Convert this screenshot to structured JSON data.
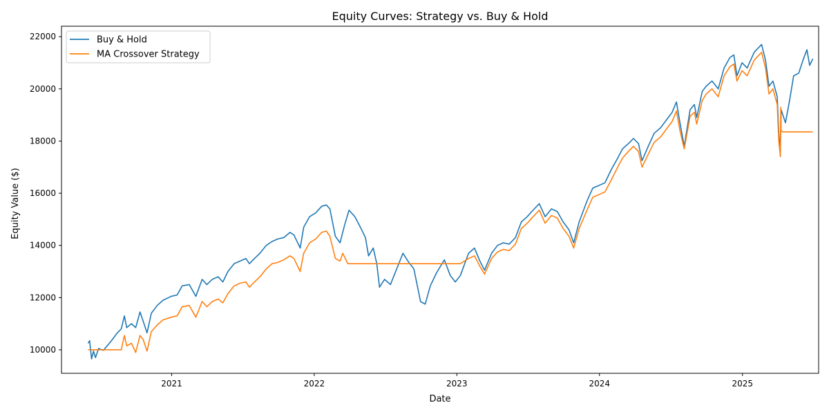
{
  "chart_data": {
    "type": "line",
    "title": "Equity Curves: Strategy vs. Buy & Hold",
    "xlabel": "Date",
    "ylabel": "Equity Value ($)",
    "xlim": [
      "2020-03-25",
      "2025-07-15"
    ],
    "ylim": [
      9100,
      22400
    ],
    "x_ticks": [
      "2021",
      "2022",
      "2023",
      "2024",
      "2025"
    ],
    "x_tick_dates": [
      "2021-01-01",
      "2022-01-01",
      "2023-01-01",
      "2024-01-01",
      "2025-01-01"
    ],
    "y_ticks": [
      10000,
      12000,
      14000,
      16000,
      18000,
      20000,
      22000
    ],
    "legend_position": "top-left",
    "grid": false,
    "series": [
      {
        "name": "Buy & Hold",
        "color": "#1f77b4",
        "points": [
          [
            "2020-06-01",
            10250
          ],
          [
            "2020-06-05",
            10350
          ],
          [
            "2020-06-10",
            9650
          ],
          [
            "2020-06-15",
            9950
          ],
          [
            "2020-06-20",
            9700
          ],
          [
            "2020-06-28",
            10050
          ],
          [
            "2020-07-10",
            9980
          ],
          [
            "2020-07-20",
            10150
          ],
          [
            "2020-07-31",
            10350
          ],
          [
            "2020-08-15",
            10650
          ],
          [
            "2020-08-25",
            10800
          ],
          [
            "2020-09-02",
            11300
          ],
          [
            "2020-09-08",
            10850
          ],
          [
            "2020-09-20",
            11000
          ],
          [
            "2020-10-01",
            10850
          ],
          [
            "2020-10-12",
            11450
          ],
          [
            "2020-10-20",
            11100
          ],
          [
            "2020-10-30",
            10650
          ],
          [
            "2020-11-10",
            11400
          ],
          [
            "2020-11-25",
            11700
          ],
          [
            "2020-12-10",
            11900
          ],
          [
            "2020-12-31",
            12050
          ],
          [
            "2021-01-15",
            12100
          ],
          [
            "2021-01-28",
            12450
          ],
          [
            "2021-02-15",
            12500
          ],
          [
            "2021-03-04",
            12050
          ],
          [
            "2021-03-20",
            12700
          ],
          [
            "2021-04-01",
            12500
          ],
          [
            "2021-04-15",
            12700
          ],
          [
            "2021-04-30",
            12800
          ],
          [
            "2021-05-12",
            12600
          ],
          [
            "2021-05-25",
            13000
          ],
          [
            "2021-06-10",
            13300
          ],
          [
            "2021-06-25",
            13400
          ],
          [
            "2021-07-10",
            13500
          ],
          [
            "2021-07-19",
            13300
          ],
          [
            "2021-08-01",
            13500
          ],
          [
            "2021-08-15",
            13700
          ],
          [
            "2021-08-31",
            14000
          ],
          [
            "2021-09-15",
            14150
          ],
          [
            "2021-09-30",
            14250
          ],
          [
            "2021-10-15",
            14300
          ],
          [
            "2021-10-31",
            14500
          ],
          [
            "2021-11-10",
            14400
          ],
          [
            "2021-11-26",
            13900
          ],
          [
            "2021-12-05",
            14700
          ],
          [
            "2021-12-20",
            15100
          ],
          [
            "2022-01-05",
            15250
          ],
          [
            "2022-01-20",
            15500
          ],
          [
            "2022-02-01",
            15550
          ],
          [
            "2022-02-10",
            15400
          ],
          [
            "2022-02-24",
            14350
          ],
          [
            "2022-03-08",
            14100
          ],
          [
            "2022-03-20",
            14800
          ],
          [
            "2022-03-31",
            15350
          ],
          [
            "2022-04-15",
            15100
          ],
          [
            "2022-04-29",
            14700
          ],
          [
            "2022-05-12",
            14300
          ],
          [
            "2022-05-20",
            13600
          ],
          [
            "2022-06-01",
            13900
          ],
          [
            "2022-06-10",
            13300
          ],
          [
            "2022-06-17",
            12400
          ],
          [
            "2022-06-30",
            12700
          ],
          [
            "2022-07-15",
            12500
          ],
          [
            "2022-07-31",
            13100
          ],
          [
            "2022-08-16",
            13700
          ],
          [
            "2022-08-31",
            13350
          ],
          [
            "2022-09-13",
            13100
          ],
          [
            "2022-09-30",
            11850
          ],
          [
            "2022-10-12",
            11750
          ],
          [
            "2022-10-25",
            12450
          ],
          [
            "2022-11-10",
            12950
          ],
          [
            "2022-11-30",
            13450
          ],
          [
            "2022-12-15",
            12850
          ],
          [
            "2022-12-28",
            12600
          ],
          [
            "2023-01-10",
            12850
          ],
          [
            "2023-01-31",
            13700
          ],
          [
            "2023-02-15",
            13900
          ],
          [
            "2023-03-01",
            13400
          ],
          [
            "2023-03-13",
            13050
          ],
          [
            "2023-03-31",
            13700
          ],
          [
            "2023-04-15",
            14000
          ],
          [
            "2023-04-30",
            14100
          ],
          [
            "2023-05-15",
            14050
          ],
          [
            "2023-05-31",
            14300
          ],
          [
            "2023-06-15",
            14900
          ],
          [
            "2023-06-30",
            15100
          ],
          [
            "2023-07-15",
            15350
          ],
          [
            "2023-07-31",
            15600
          ],
          [
            "2023-08-15",
            15100
          ],
          [
            "2023-08-31",
            15400
          ],
          [
            "2023-09-15",
            15300
          ],
          [
            "2023-09-30",
            14900
          ],
          [
            "2023-10-15",
            14600
          ],
          [
            "2023-10-27",
            14100
          ],
          [
            "2023-11-10",
            14900
          ],
          [
            "2023-11-30",
            15700
          ],
          [
            "2023-12-15",
            16200
          ],
          [
            "2023-12-31",
            16300
          ],
          [
            "2024-01-15",
            16400
          ],
          [
            "2024-01-31",
            16900
          ],
          [
            "2024-02-15",
            17300
          ],
          [
            "2024-02-29",
            17700
          ],
          [
            "2024-03-15",
            17900
          ],
          [
            "2024-03-28",
            18100
          ],
          [
            "2024-04-10",
            17900
          ],
          [
            "2024-04-19",
            17250
          ],
          [
            "2024-05-05",
            17800
          ],
          [
            "2024-05-20",
            18300
          ],
          [
            "2024-06-05",
            18500
          ],
          [
            "2024-06-20",
            18800
          ],
          [
            "2024-07-05",
            19100
          ],
          [
            "2024-07-16",
            19500
          ],
          [
            "2024-07-25",
            18700
          ],
          [
            "2024-08-05",
            17800
          ],
          [
            "2024-08-20",
            19200
          ],
          [
            "2024-08-31",
            19400
          ],
          [
            "2024-09-06",
            18900
          ],
          [
            "2024-09-20",
            19900
          ],
          [
            "2024-09-30",
            20100
          ],
          [
            "2024-10-15",
            20300
          ],
          [
            "2024-10-31",
            20000
          ],
          [
            "2024-11-15",
            20800
          ],
          [
            "2024-11-30",
            21200
          ],
          [
            "2024-12-10",
            21300
          ],
          [
            "2024-12-18",
            20500
          ],
          [
            "2024-12-31",
            21000
          ],
          [
            "2025-01-13",
            20800
          ],
          [
            "2025-01-31",
            21400
          ],
          [
            "2025-02-19",
            21700
          ],
          [
            "2025-03-01",
            21100
          ],
          [
            "2025-03-10",
            20100
          ],
          [
            "2025-03-20",
            20300
          ],
          [
            "2025-03-31",
            19700
          ],
          [
            "2025-04-04",
            18300
          ],
          [
            "2025-04-08",
            17600
          ],
          [
            "2025-04-10",
            19200
          ],
          [
            "2025-04-21",
            18700
          ],
          [
            "2025-05-01",
            19500
          ],
          [
            "2025-05-12",
            20500
          ],
          [
            "2025-05-25",
            20600
          ],
          [
            "2025-06-05",
            21100
          ],
          [
            "2025-06-15",
            21500
          ],
          [
            "2025-06-22",
            20900
          ],
          [
            "2025-06-30",
            21150
          ]
        ]
      },
      {
        "name": "MA Crossover Strategy",
        "color": "#ff7f0e",
        "points": [
          [
            "2020-06-01",
            10000
          ],
          [
            "2020-08-25",
            10000
          ],
          [
            "2020-09-02",
            10550
          ],
          [
            "2020-09-08",
            10150
          ],
          [
            "2020-09-20",
            10250
          ],
          [
            "2020-10-01",
            9900
          ],
          [
            "2020-10-12",
            10550
          ],
          [
            "2020-10-20",
            10400
          ],
          [
            "2020-10-30",
            9950
          ],
          [
            "2020-11-10",
            10700
          ],
          [
            "2020-11-25",
            10950
          ],
          [
            "2020-12-10",
            11150
          ],
          [
            "2020-12-31",
            11250
          ],
          [
            "2021-01-15",
            11300
          ],
          [
            "2021-01-28",
            11650
          ],
          [
            "2021-02-15",
            11700
          ],
          [
            "2021-03-04",
            11250
          ],
          [
            "2021-03-20",
            11850
          ],
          [
            "2021-04-01",
            11650
          ],
          [
            "2021-04-15",
            11850
          ],
          [
            "2021-04-30",
            11950
          ],
          [
            "2021-05-12",
            11800
          ],
          [
            "2021-05-25",
            12150
          ],
          [
            "2021-06-10",
            12450
          ],
          [
            "2021-06-25",
            12550
          ],
          [
            "2021-07-10",
            12600
          ],
          [
            "2021-07-19",
            12400
          ],
          [
            "2021-08-01",
            12600
          ],
          [
            "2021-08-15",
            12800
          ],
          [
            "2021-08-31",
            13100
          ],
          [
            "2021-09-15",
            13300
          ],
          [
            "2021-09-30",
            13350
          ],
          [
            "2021-10-15",
            13450
          ],
          [
            "2021-10-31",
            13600
          ],
          [
            "2021-11-10",
            13500
          ],
          [
            "2021-11-26",
            13000
          ],
          [
            "2021-12-05",
            13700
          ],
          [
            "2021-12-20",
            14100
          ],
          [
            "2022-01-05",
            14250
          ],
          [
            "2022-01-20",
            14500
          ],
          [
            "2022-02-01",
            14550
          ],
          [
            "2022-02-10",
            14350
          ],
          [
            "2022-02-24",
            13500
          ],
          [
            "2022-03-08",
            13400
          ],
          [
            "2022-03-15",
            13700
          ],
          [
            "2022-03-28",
            13300
          ],
          [
            "2022-10-15",
            13300
          ],
          [
            "2023-01-01",
            13300
          ],
          [
            "2023-01-10",
            13300
          ],
          [
            "2023-01-31",
            13500
          ],
          [
            "2023-02-15",
            13600
          ],
          [
            "2023-03-01",
            13200
          ],
          [
            "2023-03-13",
            12900
          ],
          [
            "2023-03-31",
            13500
          ],
          [
            "2023-04-15",
            13750
          ],
          [
            "2023-04-30",
            13850
          ],
          [
            "2023-05-15",
            13800
          ],
          [
            "2023-05-31",
            14050
          ],
          [
            "2023-06-15",
            14650
          ],
          [
            "2023-06-30",
            14850
          ],
          [
            "2023-07-15",
            15100
          ],
          [
            "2023-07-31",
            15350
          ],
          [
            "2023-08-15",
            14850
          ],
          [
            "2023-08-31",
            15150
          ],
          [
            "2023-09-15",
            15050
          ],
          [
            "2023-09-30",
            14650
          ],
          [
            "2023-10-15",
            14350
          ],
          [
            "2023-10-27",
            13900
          ],
          [
            "2023-11-10",
            14650
          ],
          [
            "2023-11-30",
            15350
          ],
          [
            "2023-12-15",
            15850
          ],
          [
            "2023-12-31",
            15950
          ],
          [
            "2024-01-15",
            16050
          ],
          [
            "2024-01-31",
            16500
          ],
          [
            "2024-02-15",
            16950
          ],
          [
            "2024-02-29",
            17350
          ],
          [
            "2024-03-15",
            17600
          ],
          [
            "2024-03-28",
            17800
          ],
          [
            "2024-04-10",
            17600
          ],
          [
            "2024-04-19",
            17000
          ],
          [
            "2024-05-05",
            17500
          ],
          [
            "2024-05-20",
            17950
          ],
          [
            "2024-06-05",
            18150
          ],
          [
            "2024-06-20",
            18450
          ],
          [
            "2024-07-05",
            18750
          ],
          [
            "2024-07-16",
            19150
          ],
          [
            "2024-07-25",
            18400
          ],
          [
            "2024-08-05",
            17700
          ],
          [
            "2024-08-20",
            18950
          ],
          [
            "2024-08-31",
            19100
          ],
          [
            "2024-09-06",
            18650
          ],
          [
            "2024-09-20",
            19550
          ],
          [
            "2024-09-30",
            19800
          ],
          [
            "2024-10-15",
            20000
          ],
          [
            "2024-10-31",
            19700
          ],
          [
            "2024-11-15",
            20500
          ],
          [
            "2024-11-30",
            20850
          ],
          [
            "2024-12-10",
            20950
          ],
          [
            "2024-12-18",
            20300
          ],
          [
            "2024-12-31",
            20700
          ],
          [
            "2025-01-13",
            20500
          ],
          [
            "2025-01-31",
            21100
          ],
          [
            "2025-02-19",
            21400
          ],
          [
            "2025-03-01",
            20800
          ],
          [
            "2025-03-10",
            19800
          ],
          [
            "2025-03-20",
            20000
          ],
          [
            "2025-03-31",
            19400
          ],
          [
            "2025-04-04",
            18000
          ],
          [
            "2025-04-08",
            17400
          ],
          [
            "2025-04-09",
            19300
          ],
          [
            "2025-04-10",
            18400
          ],
          [
            "2025-04-14",
            18350
          ],
          [
            "2025-06-30",
            18350
          ]
        ]
      }
    ]
  }
}
